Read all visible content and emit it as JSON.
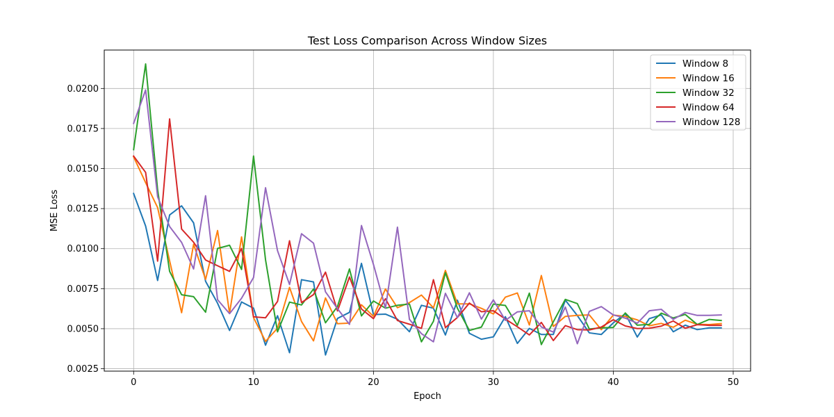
{
  "chart_data": {
    "type": "line",
    "title": "Test Loss Comparison Across Window Sizes",
    "xlabel": "Epoch",
    "ylabel": "MSE Loss",
    "xlim": [
      -2.45,
      51.45
    ],
    "ylim": [
      0.00235,
      0.0224
    ],
    "xticks": [
      0,
      10,
      20,
      30,
      40,
      50
    ],
    "xtick_labels": [
      "0",
      "10",
      "20",
      "30",
      "40",
      "50"
    ],
    "yticks": [
      0.0025,
      0.005,
      0.0075,
      0.01,
      0.0125,
      0.015,
      0.0175,
      0.02
    ],
    "ytick_labels": [
      "0.0025",
      "0.0050",
      "0.0075",
      "0.0100",
      "0.0125",
      "0.0150",
      "0.0175",
      "0.0200"
    ],
    "grid": true,
    "legend_position": "top-right",
    "x": [
      0,
      1,
      2,
      3,
      4,
      5,
      6,
      7,
      8,
      9,
      10,
      11,
      12,
      13,
      14,
      15,
      16,
      17,
      18,
      19,
      20,
      21,
      22,
      23,
      24,
      25,
      26,
      27,
      28,
      29,
      30,
      31,
      32,
      33,
      34,
      35,
      36,
      37,
      38,
      39,
      40,
      41,
      42,
      43,
      44,
      45,
      46,
      47,
      48,
      49
    ],
    "series": [
      {
        "name": "Window 8",
        "color": "#1f77b4",
        "values": [
          0.01344,
          0.01141,
          0.00801,
          0.0121,
          0.01267,
          0.01161,
          0.00796,
          0.00659,
          0.00489,
          0.00667,
          0.00628,
          0.00397,
          0.00581,
          0.0035,
          0.00806,
          0.00792,
          0.00336,
          0.00564,
          0.00602,
          0.00908,
          0.00588,
          0.00591,
          0.00559,
          0.00481,
          0.00646,
          0.00628,
          0.00461,
          0.00678,
          0.00471,
          0.00434,
          0.00449,
          0.00575,
          0.00408,
          0.00502,
          0.00464,
          0.00464,
          0.00678,
          0.00582,
          0.00474,
          0.00464,
          0.00536,
          0.00594,
          0.00448,
          0.00563,
          0.00586,
          0.00481,
          0.00522,
          0.00494,
          0.00505,
          0.00505
        ]
      },
      {
        "name": "Window 16",
        "color": "#ff7f0e",
        "values": [
          0.01573,
          0.01412,
          0.01256,
          0.00924,
          0.006,
          0.01027,
          0.00808,
          0.01113,
          0.00596,
          0.01073,
          0.00569,
          0.00421,
          0.00503,
          0.00758,
          0.00545,
          0.00424,
          0.00692,
          0.00531,
          0.00535,
          0.00649,
          0.00577,
          0.00748,
          0.00631,
          0.00663,
          0.0071,
          0.0063,
          0.00864,
          0.00655,
          0.00655,
          0.00627,
          0.00592,
          0.00697,
          0.00723,
          0.00523,
          0.00832,
          0.00514,
          0.00577,
          0.00583,
          0.00586,
          0.00494,
          0.00585,
          0.00577,
          0.00555,
          0.00518,
          0.00533,
          0.00509,
          0.00553,
          0.00527,
          0.00526,
          0.00532
        ]
      },
      {
        "name": "Window 32",
        "color": "#2ca02c",
        "values": [
          0.01618,
          0.02153,
          0.01368,
          0.00858,
          0.00712,
          0.007,
          0.00603,
          0.01001,
          0.01021,
          0.0087,
          0.01578,
          0.0093,
          0.0048,
          0.00666,
          0.00648,
          0.00748,
          0.00537,
          0.00639,
          0.00873,
          0.0058,
          0.00673,
          0.00628,
          0.00646,
          0.00654,
          0.00418,
          0.00546,
          0.0085,
          0.00628,
          0.00489,
          0.0051,
          0.00654,
          0.00645,
          0.00521,
          0.00722,
          0.00401,
          0.00543,
          0.00683,
          0.00657,
          0.00498,
          0.00505,
          0.00508,
          0.00598,
          0.00522,
          0.00527,
          0.00597,
          0.00567,
          0.00589,
          0.00526,
          0.00558,
          0.00551
        ]
      },
      {
        "name": "Window 64",
        "color": "#d62728",
        "values": [
          0.01578,
          0.01476,
          0.00922,
          0.0181,
          0.01122,
          0.0104,
          0.00929,
          0.00893,
          0.00858,
          0.01001,
          0.00574,
          0.00568,
          0.0067,
          0.01049,
          0.00663,
          0.00713,
          0.00853,
          0.00611,
          0.00823,
          0.00623,
          0.00563,
          0.00687,
          0.00551,
          0.00528,
          0.00502,
          0.00806,
          0.00507,
          0.0057,
          0.0066,
          0.00606,
          0.00612,
          0.0056,
          0.00512,
          0.00461,
          0.00539,
          0.00426,
          0.00519,
          0.00494,
          0.00492,
          0.0051,
          0.00556,
          0.00517,
          0.00501,
          0.00503,
          0.00516,
          0.00548,
          0.00503,
          0.00525,
          0.00521,
          0.00521
        ]
      },
      {
        "name": "Window 128",
        "color": "#9467bd",
        "values": [
          0.01782,
          0.01991,
          0.01324,
          0.01138,
          0.01039,
          0.00873,
          0.0133,
          0.00681,
          0.00594,
          0.0069,
          0.0082,
          0.0138,
          0.00987,
          0.00776,
          0.01093,
          0.01034,
          0.0073,
          0.00625,
          0.00527,
          0.01144,
          0.00901,
          0.00628,
          0.01134,
          0.00558,
          0.00469,
          0.00418,
          0.00721,
          0.00569,
          0.00724,
          0.0056,
          0.0068,
          0.00552,
          0.00605,
          0.00612,
          0.00511,
          0.00479,
          0.00635,
          0.00406,
          0.00608,
          0.00638,
          0.00586,
          0.00566,
          0.00534,
          0.00612,
          0.00621,
          0.00558,
          0.00601,
          0.00583,
          0.00583,
          0.00586
        ]
      }
    ]
  }
}
